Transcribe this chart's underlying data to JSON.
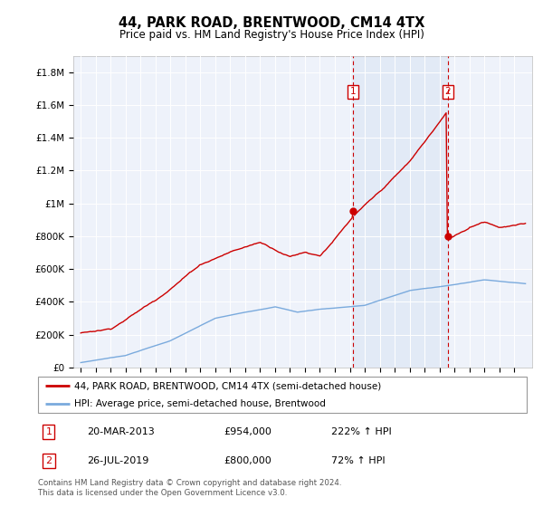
{
  "title": "44, PARK ROAD, BRENTWOOD, CM14 4TX",
  "subtitle": "Price paid vs. HM Land Registry's House Price Index (HPI)",
  "legend_line1": "44, PARK ROAD, BRENTWOOD, CM14 4TX (semi-detached house)",
  "legend_line2": "HPI: Average price, semi-detached house, Brentwood",
  "annotation1": {
    "label": "1",
    "date": "20-MAR-2013",
    "price": "£954,000",
    "pct": "222% ↑ HPI"
  },
  "annotation2": {
    "label": "2",
    "date": "26-JUL-2019",
    "price": "£800,000",
    "pct": "72% ↑ HPI"
  },
  "footer": "Contains HM Land Registry data © Crown copyright and database right 2024.\nThis data is licensed under the Open Government Licence v3.0.",
  "hpi_color": "#7aaadd",
  "price_color": "#cc0000",
  "shade_color": "#dde8f5",
  "event1_x": 2013.22,
  "event2_x": 2019.57,
  "event1_y": 954000,
  "event2_y": 800000,
  "ylim": [
    0,
    1900000
  ],
  "xlim": [
    1994.5,
    2025.2
  ],
  "background_color": "#eef2fa"
}
